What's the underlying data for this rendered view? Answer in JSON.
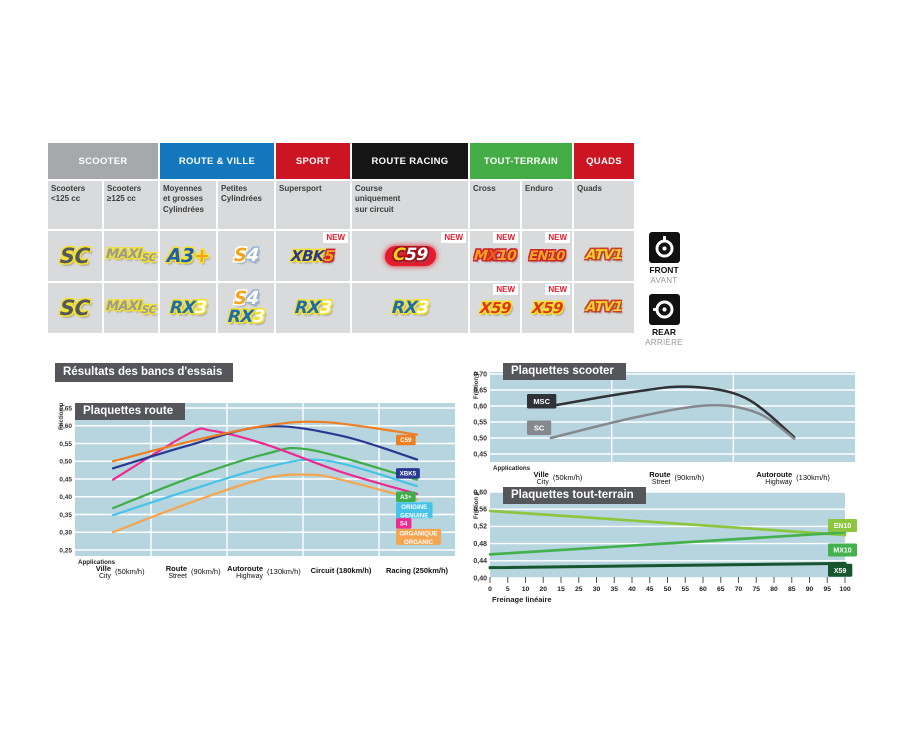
{
  "results_title": "Résultats des bancs d'essais",
  "colors": {
    "plot_bg": "#b6d5de",
    "title_box": "#55565a",
    "new_flag": "#e31c2d",
    "cell_bg": "#d9dadb"
  },
  "table": {
    "new_label": "NEW",
    "groups": [
      {
        "label": "SCOOTER",
        "color": "#a6a8ab",
        "span": 2
      },
      {
        "label": "ROUTE & VILLE",
        "color": "#1377bd",
        "span": 2
      },
      {
        "label": "SPORT",
        "color": "#cd1422",
        "span": 1
      },
      {
        "label": "ROUTE RACING",
        "color": "#151515",
        "span": 1
      },
      {
        "label": "TOUT-TERRAIN",
        "color": "#44ac44",
        "span": 2
      },
      {
        "label": "QUADS",
        "color": "#cd1422",
        "span": 1
      }
    ],
    "columns": [
      "Scooters\n<125 cc",
      "Scooters\n≥125 cc",
      "Moyennes\net grosses\nCylindrées",
      "Petites\nCylindrées",
      "Supersport",
      "Course\nuniquement\nsur circuit",
      "Cross",
      "Enduro",
      "Quads"
    ],
    "badges": {
      "sc": {
        "fs": 21,
        "parts": [
          {
            "t": "SC",
            "c": "#54575c",
            "o": "#f3e130"
          }
        ]
      },
      "maxisc": {
        "fs": 13,
        "parts": [
          {
            "t": "MAXI",
            "c": "#97999b",
            "o": "#f3e130"
          },
          {
            "t": "SC",
            "c": "#97999b",
            "o": "#f3e130",
            "fs": 0.8,
            "va": -3
          }
        ]
      },
      "a3plus": {
        "fs": 19,
        "parts": [
          {
            "t": "A3",
            "c": "#1d5fb0",
            "o": "#f3e130"
          },
          {
            "t": "+",
            "c": "#f5a51b",
            "o": "#f3e130"
          }
        ]
      },
      "s4": {
        "fs": 18,
        "parts": [
          {
            "t": "S",
            "c": "#f5a51b",
            "o": "#ffffff"
          },
          {
            "t": "4",
            "c": "#ffffff",
            "o": "#9ab4d6"
          }
        ]
      },
      "xbk5": {
        "fs": 15,
        "parts": [
          {
            "t": "XBK",
            "c": "#2b3892",
            "o": "#f3e130"
          },
          {
            "t": "5",
            "c": "#f5a51b",
            "o": "#d0202a"
          }
        ]
      },
      "c59": {
        "fs": 17,
        "glow": true,
        "parts": [
          {
            "t": "C",
            "c": "#f5d718",
            "o": "#a00f1c"
          },
          {
            "t": "59",
            "c": "#ffffff",
            "o": "#a00f1c"
          }
        ]
      },
      "mx10": {
        "fs": 14,
        "parts": [
          {
            "t": "M",
            "c": "#f5a51b",
            "o": "#d0202a"
          },
          {
            "t": "X",
            "c": "#e8601c",
            "o": "#d0202a"
          },
          {
            "t": "10",
            "c": "#f5a51b",
            "o": "#d0202a"
          }
        ]
      },
      "en10": {
        "fs": 13,
        "parts": [
          {
            "t": "EN10",
            "c": "#f0a81e",
            "o": "#d0202a"
          }
        ]
      },
      "atv1": {
        "fs": 13.5,
        "parts": [
          {
            "t": "ATV1",
            "c": "#f0d22c",
            "o": "#cf3b23"
          }
        ]
      },
      "rx3": {
        "fs": 17,
        "parts": [
          {
            "t": "RX",
            "c": "#1c6cb5",
            "o": "#f3e130"
          },
          {
            "t": "3",
            "c": "#ffffff",
            "o": "#f3e130"
          }
        ]
      },
      "x59": {
        "fs": 15,
        "parts": [
          {
            "t": "X59",
            "c": "#e2341d",
            "o": "#f3e130"
          }
        ]
      }
    },
    "rows": [
      {
        "side": "front",
        "cells": [
          {
            "badges": [
              "sc"
            ]
          },
          {
            "badges": [
              "maxisc"
            ]
          },
          {
            "badges": [
              "a3plus"
            ]
          },
          {
            "badges": [
              "s4"
            ]
          },
          {
            "badges": [
              "xbk5"
            ],
            "new": true
          },
          {
            "badges": [
              "c59"
            ],
            "new": true
          },
          {
            "badges": [
              "mx10"
            ],
            "new": true
          },
          {
            "badges": [
              "en10"
            ],
            "new": true
          },
          {
            "badges": [
              "atv1"
            ]
          }
        ]
      },
      {
        "side": "rear",
        "cells": [
          {
            "badges": [
              "sc"
            ]
          },
          {
            "badges": [
              "maxisc"
            ]
          },
          {
            "badges": [
              "rx3"
            ]
          },
          {
            "badges": [
              "s4",
              "rx3"
            ]
          },
          {
            "badges": [
              "rx3"
            ]
          },
          {
            "badges": [
              "rx3"
            ]
          },
          {
            "badges": [
              "x59"
            ],
            "new": true
          },
          {
            "badges": [
              "x59"
            ],
            "new": true
          },
          {
            "badges": [
              "atv1"
            ]
          }
        ]
      }
    ],
    "side": [
      {
        "en": "FRONT",
        "fr": "AVANT",
        "icon": "front-disc-icon"
      },
      {
        "en": "REAR",
        "fr": "ARRIÈRE",
        "icon": "rear-disc-icon"
      }
    ]
  },
  "chart_data": [
    {
      "type": "line",
      "title": "Plaquettes route",
      "ylabel": "Friction µ",
      "ylim": [
        0.25,
        0.65
      ],
      "ytick_step": 0.05,
      "grid": "on",
      "legend_position": "right-inside",
      "x_header": "Applications",
      "categories": [
        {
          "fr": "Ville",
          "en": "City",
          "speed": "(50km/h)"
        },
        {
          "fr": "Route",
          "en": "Street",
          "speed": "(90km/h)"
        },
        {
          "fr": "Autoroute",
          "en": "Highway",
          "speed": "(130km/h)"
        },
        {
          "fr": "Circuit",
          "en": "",
          "speed": "(180km/h)"
        },
        {
          "fr": "Racing",
          "en": "",
          "speed": "(250km/h)"
        }
      ],
      "series": [
        {
          "name": "ORGANIQUE ORGANIC",
          "color": "#f5a54f",
          "points": [
            [
              0,
              0.3
            ],
            [
              1,
              0.382
            ],
            [
              2,
              0.452
            ],
            [
              2.6,
              0.462
            ],
            [
              3,
              0.448
            ],
            [
              4,
              0.392
            ]
          ],
          "chip": {
            "lines": [
              "ORGANIQUE",
              "ORGANIC"
            ],
            "v": 0.287
          }
        },
        {
          "name": "ORIGINE GENUINE",
          "color": "#47c3e8",
          "points": [
            [
              0,
              0.348
            ],
            [
              1,
              0.418
            ],
            [
              2,
              0.482
            ],
            [
              2.8,
              0.502
            ],
            [
              4,
              0.43
            ]
          ],
          "chip": {
            "lines": [
              "ORIGINE",
              "GENUINE"
            ],
            "v": 0.362
          }
        },
        {
          "name": "A3+",
          "color": "#3dae49",
          "points": [
            [
              0,
              0.368
            ],
            [
              1,
              0.452
            ],
            [
              2,
              0.52
            ],
            [
              2.6,
              0.532
            ],
            [
              4,
              0.448
            ]
          ],
          "chip": {
            "lines": [
              "A3+"
            ],
            "v": 0.4
          }
        },
        {
          "name": "S4",
          "color": "#ec2a8f",
          "points": [
            [
              0,
              0.448
            ],
            [
              1,
              0.578
            ],
            [
              1.3,
              0.586
            ],
            [
              2,
              0.548
            ],
            [
              3,
              0.47
            ],
            [
              4,
              0.408
            ]
          ],
          "chip": {
            "lines": [
              "S4"
            ],
            "v": 0.325
          }
        },
        {
          "name": "XBK5",
          "color": "#2b3892",
          "points": [
            [
              0,
              0.48
            ],
            [
              1,
              0.545
            ],
            [
              2,
              0.598
            ],
            [
              3,
              0.572
            ],
            [
              4,
              0.505
            ]
          ],
          "chip": {
            "lines": [
              "XBK5"
            ],
            "v": 0.466
          }
        },
        {
          "name": "C59",
          "color": "#ef7d22",
          "points": [
            [
              0,
              0.5
            ],
            [
              1,
              0.555
            ],
            [
              2,
              0.6
            ],
            [
              2.8,
              0.61
            ],
            [
              4,
              0.575
            ]
          ],
          "chip": {
            "lines": [
              "C59"
            ],
            "v": 0.56
          }
        }
      ]
    },
    {
      "type": "line",
      "title": "Plaquettes scooter",
      "ylabel": "Friction µ",
      "ylim": [
        0.45,
        0.7
      ],
      "ytick_step": 0.05,
      "grid": "on",
      "legend_position": "left-inside",
      "x_header": "Applications",
      "categories": [
        {
          "fr": "Ville",
          "en": "City",
          "speed": "(50km/h)"
        },
        {
          "fr": "Route",
          "en": "Street",
          "speed": "(90km/h)"
        },
        {
          "fr": "Autoroute",
          "en": "Highway",
          "speed": "(130km/h)"
        }
      ],
      "series": [
        {
          "name": "MSC",
          "color": "#2f3338",
          "points": [
            [
              0,
              0.6
            ],
            [
              0.7,
              0.645
            ],
            [
              1.15,
              0.66
            ],
            [
              1.6,
              0.625
            ],
            [
              2,
              0.503
            ]
          ],
          "chip": {
            "lines": [
              "MSC"
            ],
            "v": 0.615
          }
        },
        {
          "name": "SC",
          "color": "#85898d",
          "points": [
            [
              0,
              0.5
            ],
            [
              0.7,
              0.565
            ],
            [
              1.3,
              0.602
            ],
            [
              1.7,
              0.578
            ],
            [
              2,
              0.498
            ]
          ],
          "chip": {
            "lines": [
              "SC"
            ],
            "v": 0.532
          }
        }
      ]
    },
    {
      "type": "line",
      "title": "Plaquettes tout-terrain",
      "ylabel": "Friction µ",
      "ylim": [
        0.4,
        0.6
      ],
      "ytick_step": 0.04,
      "grid": "on",
      "legend_position": "right-edge",
      "xlabel": "Freinage linéaire",
      "xticks": [
        "0",
        "5",
        "10",
        "20",
        "15",
        "25",
        "30",
        "35",
        "40",
        "45",
        "50",
        "55",
        "60",
        "65",
        "70",
        "75",
        "80",
        "85",
        "90",
        "95",
        "100"
      ],
      "series": [
        {
          "name": "EN10",
          "color": "#8cc63f",
          "points": [
            [
              0,
              0.556
            ],
            [
              100,
              0.5
            ]
          ],
          "chip": {
            "lines": [
              "EN10"
            ],
            "v": 0.522
          }
        },
        {
          "name": "MX10",
          "color": "#44b14e",
          "points": [
            [
              0,
              0.455
            ],
            [
              100,
              0.506
            ]
          ],
          "chip": {
            "lines": [
              "MX10"
            ],
            "v": 0.465
          }
        },
        {
          "name": "X59",
          "color": "#17552f",
          "points": [
            [
              0,
              0.424
            ],
            [
              100,
              0.434
            ]
          ],
          "sw": 3,
          "chip": {
            "lines": [
              "X59"
            ],
            "v": 0.418
          }
        }
      ]
    }
  ]
}
